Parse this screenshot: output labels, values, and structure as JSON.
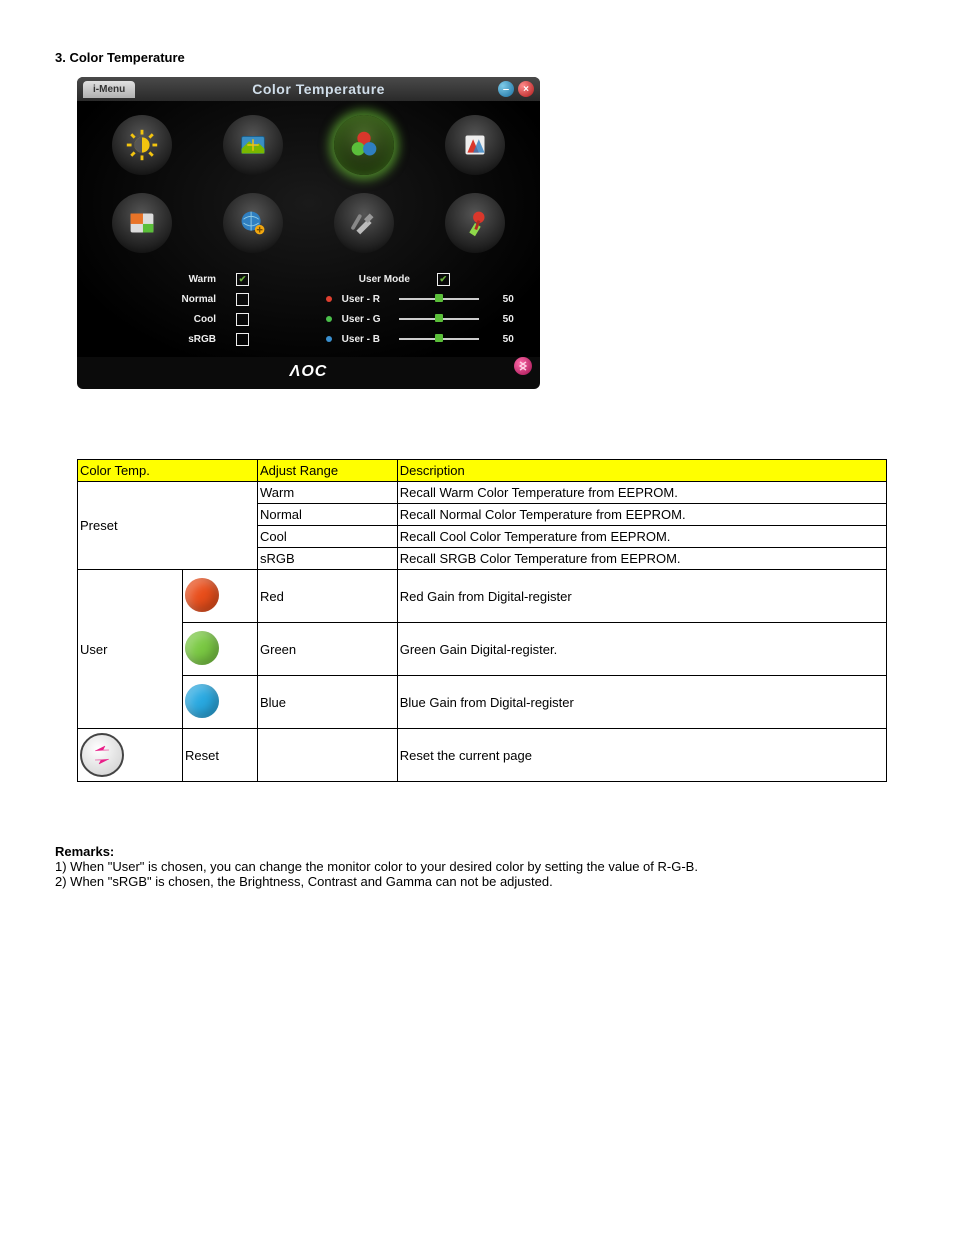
{
  "section_title": "3. Color Temperature",
  "osd": {
    "tab_label": "i-Menu",
    "title": "Color Temperature",
    "brand": "ΛOC",
    "icons": [
      {
        "name": "luminance-icon",
        "type": "sun",
        "selected": false
      },
      {
        "name": "image-setup-icon",
        "type": "image",
        "selected": false
      },
      {
        "name": "color-temp-icon",
        "type": "rgb",
        "selected": true
      },
      {
        "name": "color-boost-icon",
        "type": "fan",
        "selected": false
      },
      {
        "name": "picture-boost-icon",
        "type": "pip",
        "selected": false
      },
      {
        "name": "osd-setup-icon",
        "type": "globe",
        "selected": false
      },
      {
        "name": "extra-icon",
        "type": "tools",
        "selected": false
      },
      {
        "name": "exit-icon",
        "type": "pin",
        "selected": false
      }
    ],
    "left_options": [
      {
        "label": "Warm",
        "checked": true
      },
      {
        "label": "Normal",
        "checked": false
      },
      {
        "label": "Cool",
        "checked": false
      },
      {
        "label": "sRGB",
        "checked": false
      }
    ],
    "right_header": {
      "label": "User Mode",
      "checked": true
    },
    "sliders": [
      {
        "label": "User - R",
        "color": "r",
        "value": 50
      },
      {
        "label": "User - G",
        "color": "g",
        "value": 50
      },
      {
        "label": "User - B",
        "color": "b",
        "value": 50
      }
    ]
  },
  "table": {
    "headers": [
      "Color Temp.",
      "Adjust Range",
      "Description"
    ],
    "preset_label": "Preset",
    "preset_rows": [
      {
        "range": "Warm",
        "desc": "Recall Warm Color Temperature from EEPROM."
      },
      {
        "range": "Normal",
        "desc": "Recall Normal Color Temperature from EEPROM."
      },
      {
        "range": "Cool",
        "desc": "Recall Cool Color Temperature from EEPROM."
      },
      {
        "range": "sRGB",
        "desc": "Recall SRGB Color Temperature from EEPROM."
      }
    ],
    "user_label": "User",
    "user_rows": [
      {
        "swatch": "r",
        "range": "Red",
        "desc": "Red Gain from Digital-register"
      },
      {
        "swatch": "g",
        "range": "Green",
        "desc": "Green Gain Digital-register."
      },
      {
        "swatch": "b",
        "range": "Blue",
        "desc": "Blue Gain from Digital-register"
      }
    ],
    "reset_row": {
      "label": "Reset",
      "desc": "Reset the current page"
    }
  },
  "remarks": {
    "title": "Remarks:",
    "lines": [
      "1) When \"User\" is chosen, you can change the monitor color to your desired color by setting the value of R-G-B.",
      "2) When \"sRGB\" is chosen, the Brightness, Contrast and Gamma can not be adjusted."
    ]
  }
}
